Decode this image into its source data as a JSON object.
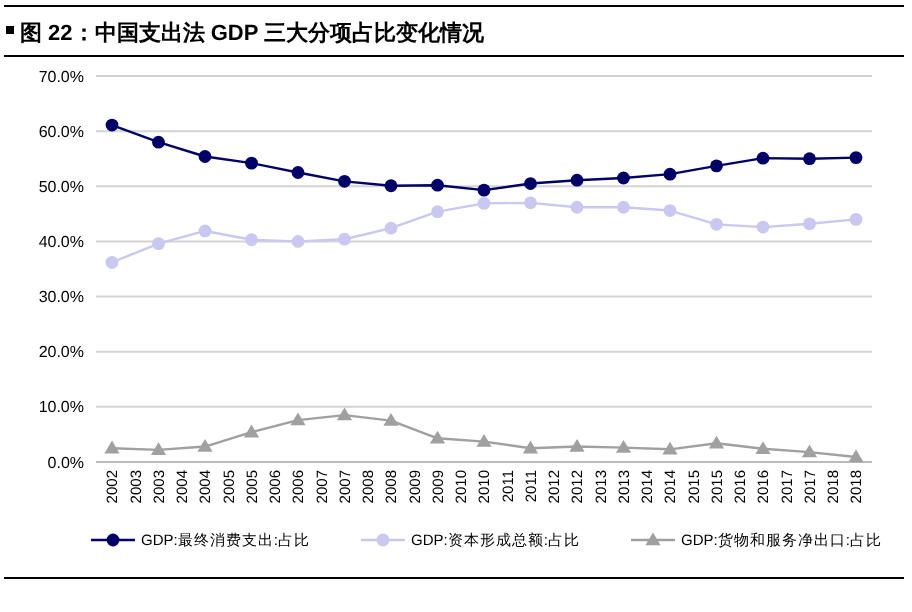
{
  "chart_data": {
    "type": "line",
    "title": "图 22：中国支出法 GDP 三大分项占比变化情况",
    "categories": [
      "2002",
      "2003",
      "2003",
      "2004",
      "2004",
      "2005",
      "2005",
      "2006",
      "2006",
      "2007",
      "2007",
      "2008",
      "2008",
      "2009",
      "2009",
      "2010",
      "2010",
      "2011",
      "2011",
      "2012",
      "2012",
      "2013",
      "2013",
      "2014",
      "2014",
      "2015",
      "2015",
      "2016",
      "2016",
      "2017",
      "2017",
      "2018",
      "2018"
    ],
    "series": [
      {
        "name": "GDP:最终消费支出:占比",
        "color": "#000066",
        "marker": "circle",
        "values": [
          61.1,
          null,
          58.0,
          null,
          55.4,
          null,
          54.2,
          null,
          52.5,
          null,
          50.9,
          null,
          50.1,
          null,
          50.2,
          null,
          49.3,
          null,
          50.5,
          null,
          51.1,
          null,
          51.5,
          null,
          52.2,
          null,
          53.7,
          null,
          55.1,
          null,
          55.0,
          null,
          55.2
        ]
      },
      {
        "name": "GDP:资本形成总额:占比",
        "color": "#c8c8f0",
        "marker": "circle",
        "values": [
          36.2,
          null,
          39.6,
          null,
          41.9,
          null,
          40.3,
          null,
          40.0,
          null,
          40.4,
          null,
          42.4,
          null,
          45.4,
          null,
          46.9,
          null,
          47.0,
          null,
          46.2,
          null,
          46.2,
          null,
          45.6,
          null,
          43.1,
          null,
          42.6,
          null,
          43.2,
          null,
          44.0
        ]
      },
      {
        "name": "GDP:货物和服务净出口:占比",
        "color": "#a0a0a0",
        "marker": "triangle",
        "values": [
          2.5,
          null,
          2.2,
          null,
          2.8,
          null,
          5.4,
          null,
          7.6,
          null,
          8.5,
          null,
          7.5,
          null,
          4.3,
          null,
          3.7,
          null,
          2.5,
          null,
          2.8,
          null,
          2.6,
          null,
          2.3,
          null,
          3.4,
          null,
          2.4,
          null,
          1.8,
          null,
          0.9
        ]
      }
    ],
    "ylim": [
      0,
      70
    ],
    "yticks": [
      {
        "value": 0,
        "label": "0.0%"
      },
      {
        "value": 10,
        "label": "10.0%"
      },
      {
        "value": 20,
        "label": "20.0%"
      },
      {
        "value": 30,
        "label": "30.0%"
      },
      {
        "value": 40,
        "label": "40.0%"
      },
      {
        "value": 50,
        "label": "50.0%"
      },
      {
        "value": 60,
        "label": "60.0%"
      },
      {
        "value": 70,
        "label": "70.0%"
      }
    ],
    "grid": "y",
    "legend": "bottom"
  }
}
